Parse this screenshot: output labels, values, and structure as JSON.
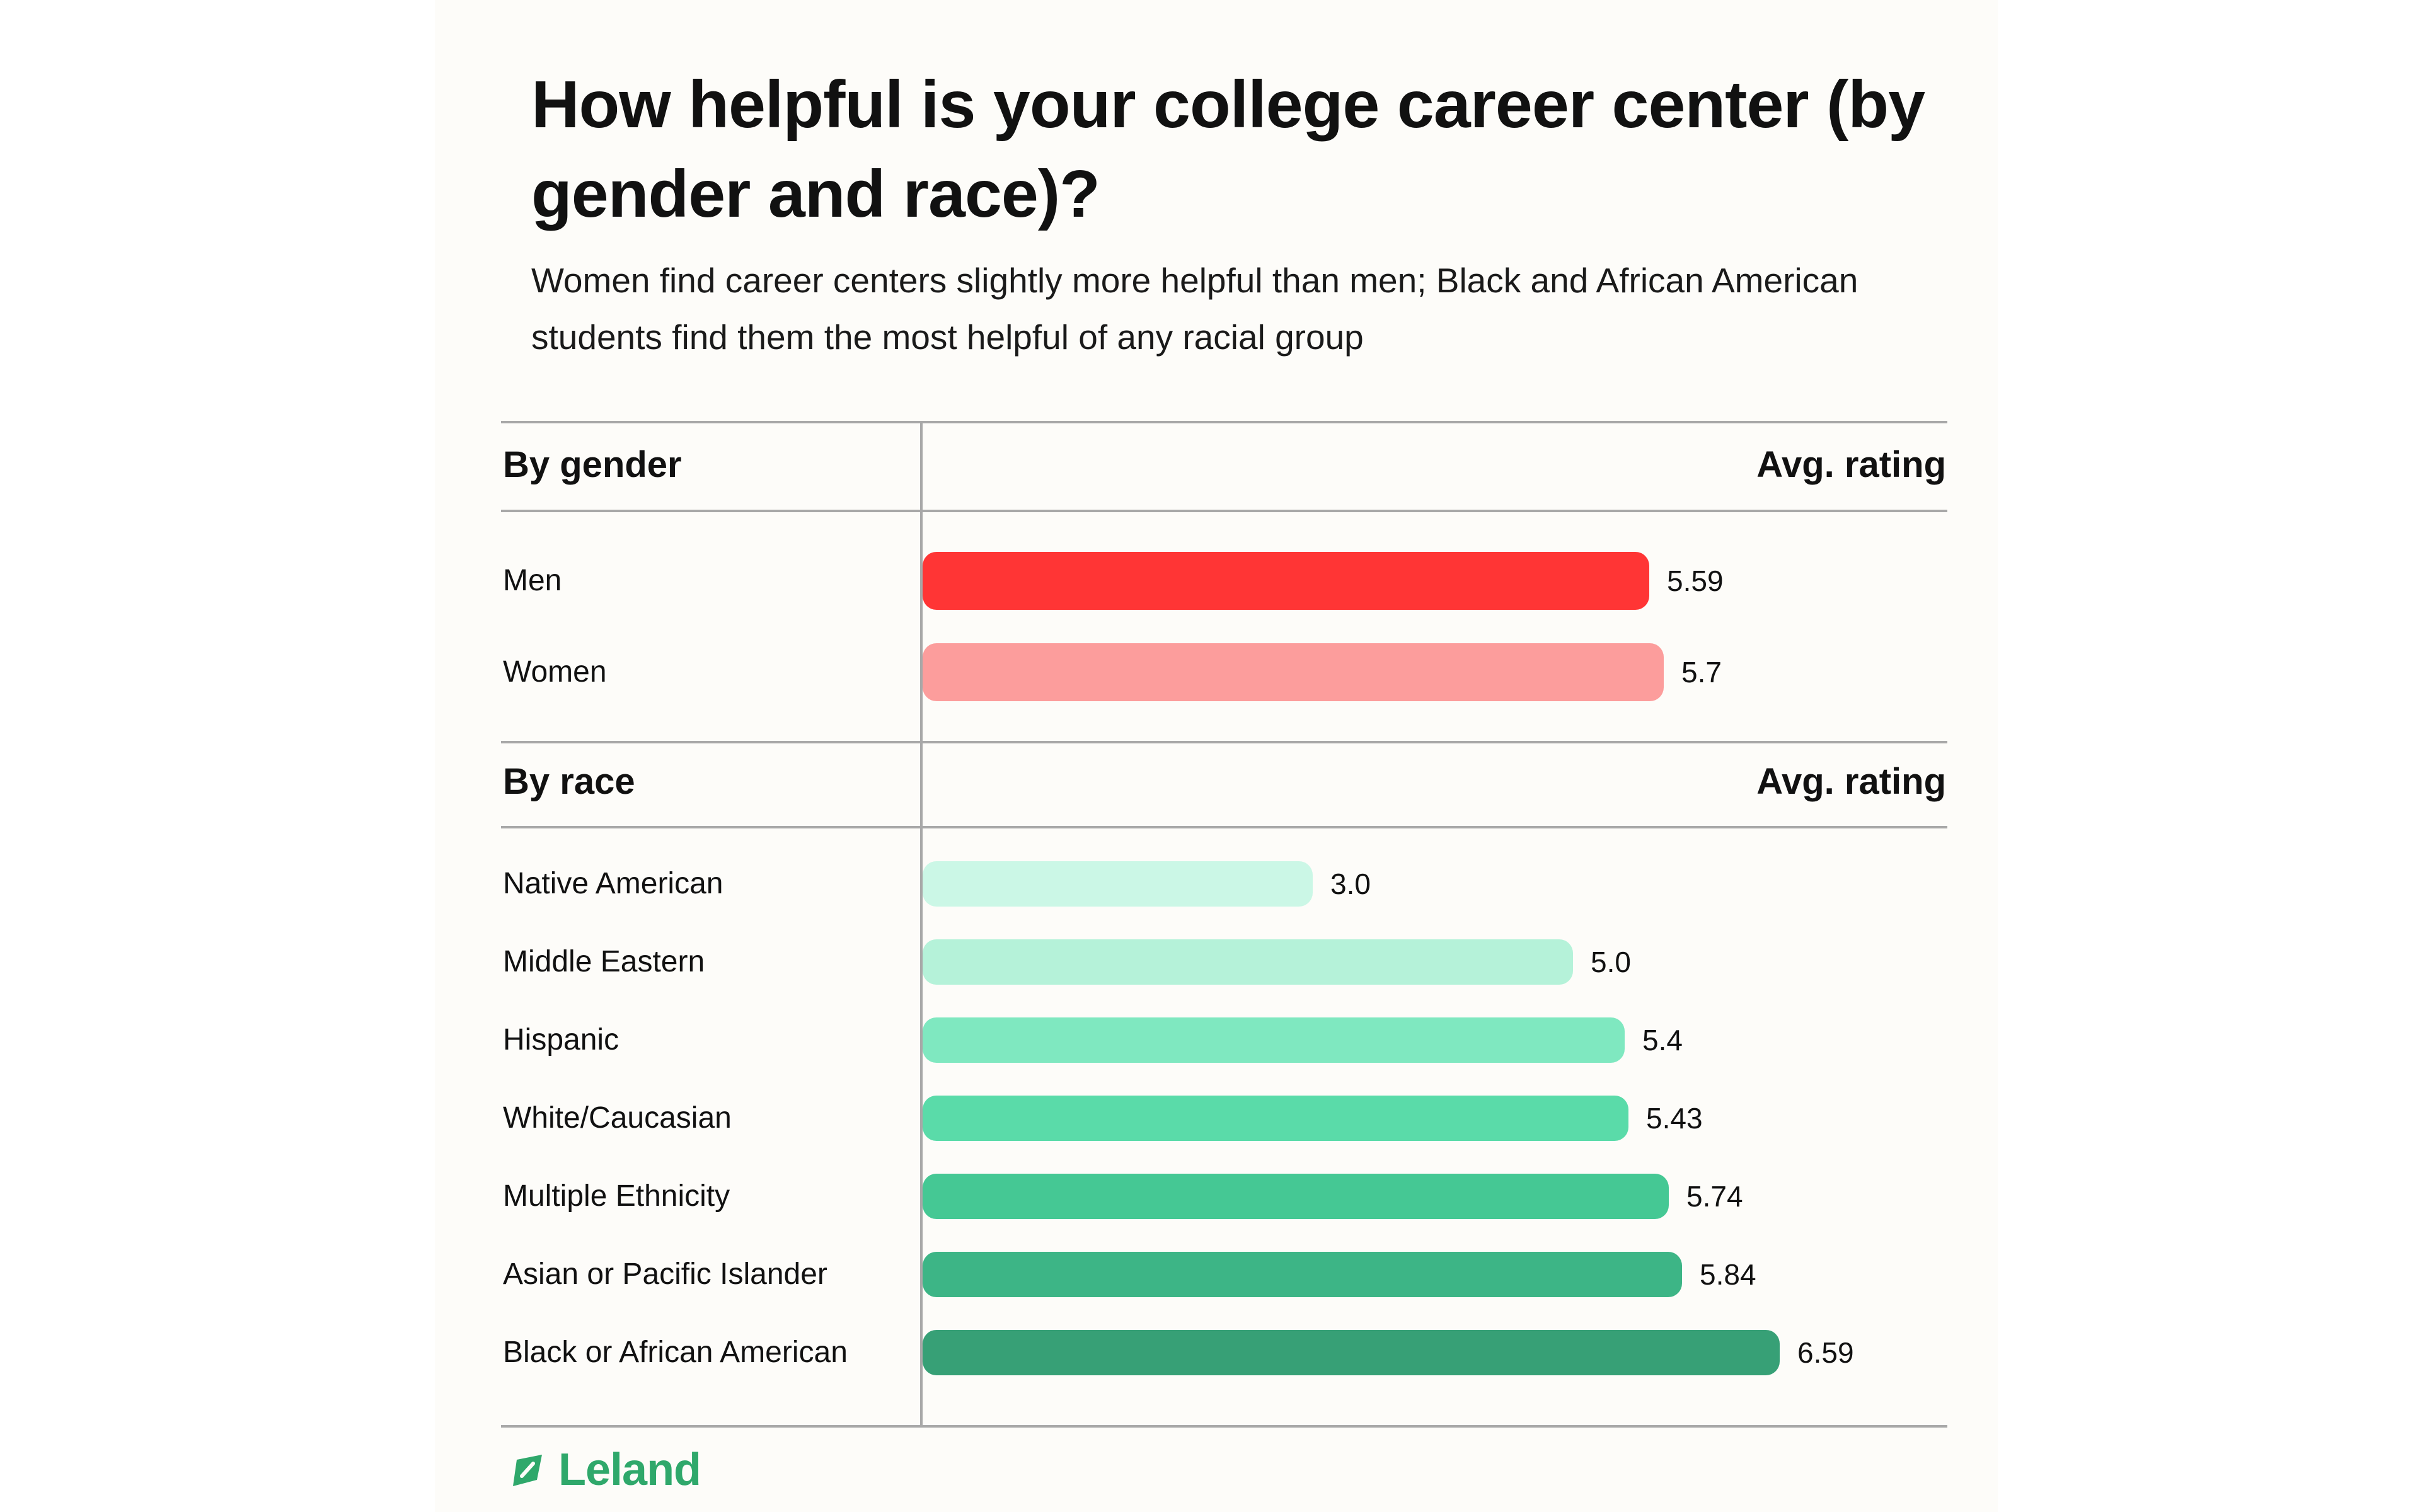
{
  "header": {
    "title": "How helpful is your college career center (by gender and race)?",
    "subtitle": "Women find career centers slightly more helpful than men; Black and African American students find them the most helpful of any racial group"
  },
  "brand": {
    "name": "Leland",
    "icon": "leaf-compass-icon",
    "color": "#2fa86b"
  },
  "chart_data": {
    "type": "bar",
    "orientation": "horizontal",
    "title": "How helpful is your college career center (by gender and race)?",
    "subtitle": "Women find career centers slightly more helpful than men; Black and African American students find them the most helpful of any racial group",
    "value_column_label": "Avg. rating",
    "scale_max": 7.9,
    "sections": [
      {
        "heading": "By gender",
        "value_label": "Avg. rating",
        "rows": [
          {
            "label": "Men",
            "value": 5.59,
            "display": "5.59",
            "color": "#ff3535"
          },
          {
            "label": "Women",
            "value": 5.7,
            "display": "5.7",
            "color": "#fc9d9c"
          }
        ]
      },
      {
        "heading": "By race",
        "value_label": "Avg. rating",
        "rows": [
          {
            "label": "Native American",
            "value": 3.0,
            "display": "3.0",
            "color": "#cbf7e6"
          },
          {
            "label": "Middle Eastern",
            "value": 5.0,
            "display": "5.0",
            "color": "#b5f2d9"
          },
          {
            "label": "Hispanic",
            "value": 5.4,
            "display": "5.4",
            "color": "#7fe8c0"
          },
          {
            "label": "White/Caucasian",
            "value": 5.43,
            "display": "5.43",
            "color": "#5adba9"
          },
          {
            "label": "Multiple Ethnicity",
            "value": 5.74,
            "display": "5.74",
            "color": "#45c894"
          },
          {
            "label": "Asian or Pacific Islander",
            "value": 5.84,
            "display": "5.84",
            "color": "#3db586"
          },
          {
            "label": "Black or African American",
            "value": 6.59,
            "display": "6.59",
            "color": "#37a076"
          }
        ]
      }
    ]
  }
}
